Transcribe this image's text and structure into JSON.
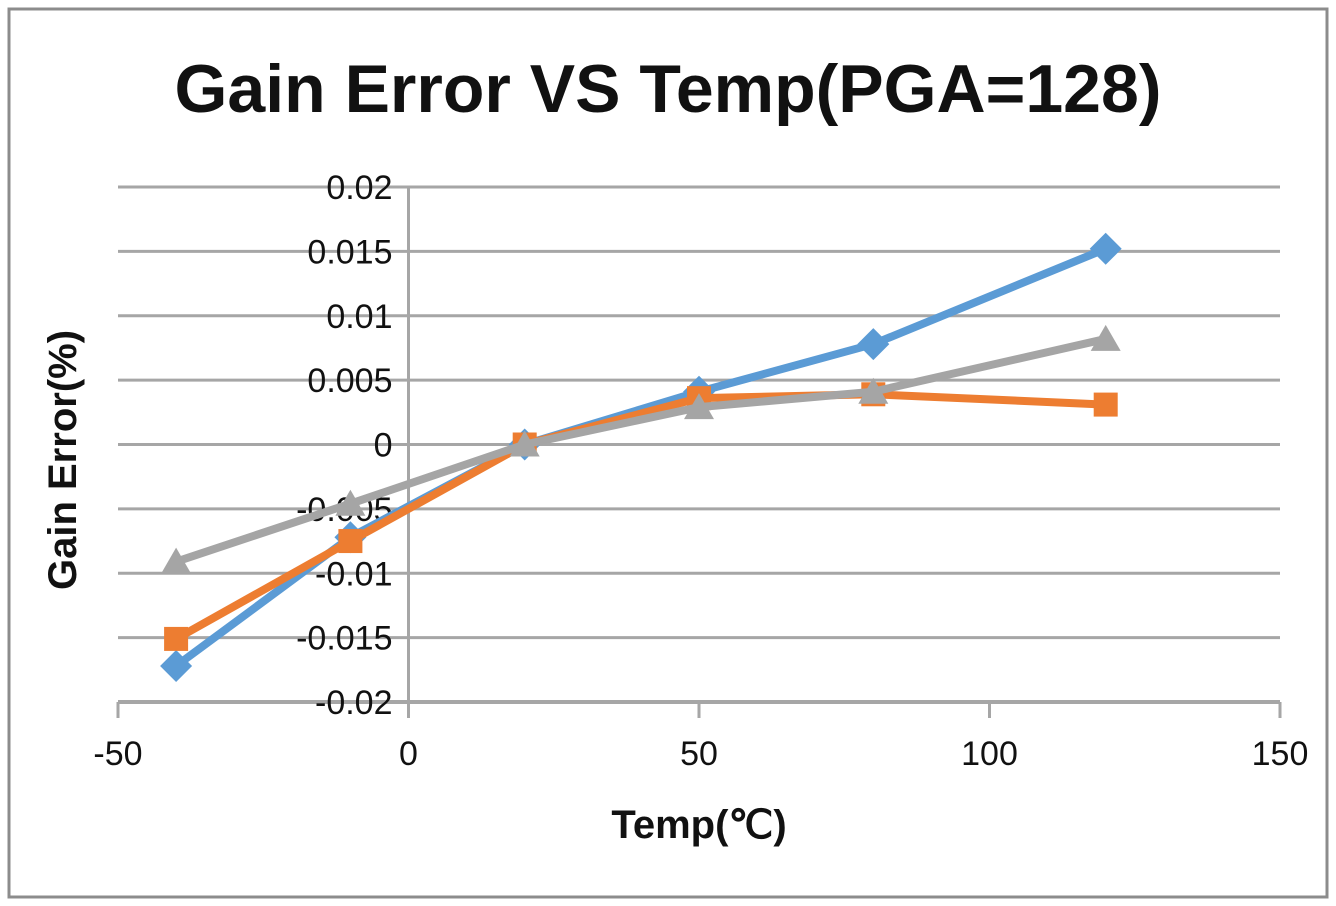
{
  "chart": {
    "background_color": "#FFFFFF",
    "border_color": "#8C8C8C",
    "grid_color": "#A6A6A6",
    "text_color": "#111111"
  },
  "chart_data": {
    "type": "line",
    "title": "Gain Error VS Temp(PGA=128)",
    "xlabel": "Temp(℃)",
    "ylabel": "Gain Error(%)",
    "xlim": [
      -50,
      150
    ],
    "ylim": [
      -0.02,
      0.02
    ],
    "x_tick_labels": [
      "-50",
      "0",
      "50",
      "100",
      "150"
    ],
    "y_tick_labels": [
      "0.02",
      "0.015",
      "0.01",
      "0.005",
      "0",
      "-0.005",
      "-0.01",
      "-0.015",
      "-0.02"
    ],
    "grid": "horizontal-major",
    "legend": "none",
    "y_axis_at_x": 0,
    "x": [
      -40,
      -10,
      20,
      50,
      80,
      120
    ],
    "series": [
      {
        "name": "blue-diamond-series",
        "marker": "diamond",
        "color": "#5B9BD5",
        "values": [
          -0.0172,
          -0.0072,
          0.0,
          0.0041,
          0.0078,
          0.0152
        ]
      },
      {
        "name": "orange-square-series",
        "marker": "square",
        "color": "#ED7D31",
        "values": [
          -0.0151,
          -0.0075,
          0.0,
          0.0036,
          0.0039,
          0.0031
        ]
      },
      {
        "name": "gray-triangle-series",
        "marker": "triangle",
        "color": "#A5A5A5",
        "values": [
          -0.0091,
          -0.0046,
          0.0,
          0.0029,
          0.0041,
          0.0082
        ]
      }
    ]
  }
}
